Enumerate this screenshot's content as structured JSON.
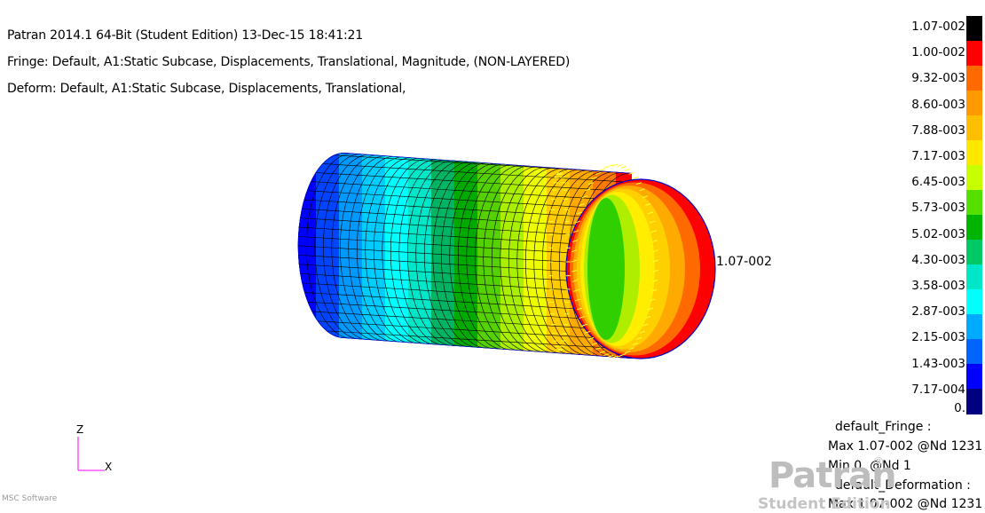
{
  "header": {
    "line1": "Patran 2014.1 64-Bit  (Student Edition) 13-Dec-15 18:41:21",
    "line2": "Fringe: Default, A1:Static Subcase, Displacements, Translational, Magnitude, (NON-LAYERED)",
    "line3": "Deform: Default, A1:Static Subcase, Displacements, Translational,"
  },
  "legend": {
    "labels": [
      "1.07-002",
      "1.00-002",
      "9.32-003",
      "8.60-003",
      "7.88-003",
      "7.17-003",
      "6.45-003",
      "5.73-003",
      "5.02-003",
      "4.30-003",
      "3.58-003",
      "2.87-003",
      "2.15-003",
      "1.43-003",
      "7.17-004",
      "0."
    ],
    "colors": [
      "#000000",
      "#ff0000",
      "#ff6a00",
      "#ff9900",
      "#ffbf00",
      "#ffe800",
      "#c8ff00",
      "#55e000",
      "#00b400",
      "#00c864",
      "#00e6c8",
      "#00ffff",
      "#00aaff",
      "#0064ff",
      "#0000ff",
      "#000080"
    ]
  },
  "model": {
    "max_label": "1.07-002",
    "ring_colors": [
      "#0000ff",
      "#0044ff",
      "#0099ff",
      "#00ccff",
      "#00ffff",
      "#00e6c8",
      "#00b464",
      "#00aa00",
      "#55d000",
      "#aaee00",
      "#eeff00",
      "#ffcc00",
      "#ffaa00",
      "#ff7a00",
      "#ff0000"
    ],
    "end_face_colors": [
      "#ff0000",
      "#ff6a00",
      "#ffaa00",
      "#ffd000",
      "#ffee00",
      "#b0ee00",
      "#30d000"
    ]
  },
  "info": {
    "fringe_title": "default_Fringe :",
    "fringe_max": "Max 1.07-002 @Nd 1231",
    "fringe_min": "Min 0. @Nd 1",
    "deform_title": "default_Deformation :",
    "deform_max": "Max 1.07-002 @Nd 1231"
  },
  "axes": {
    "z": "Z",
    "x": "X"
  },
  "branding": {
    "logo": "Patran",
    "reg": "®",
    "edition": "Student Edition",
    "vendor": "MSC Software"
  }
}
